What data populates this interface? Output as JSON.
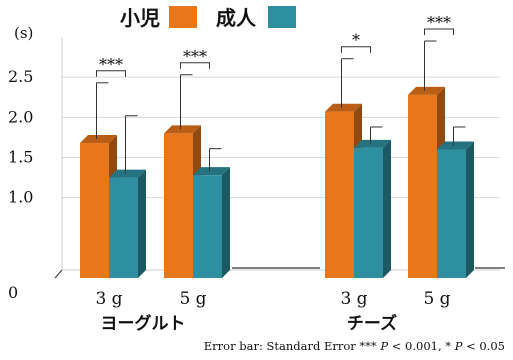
{
  "chart_data": {
    "type": "bar",
    "unit_label": "(s)",
    "ylim": [
      0,
      3.0
    ],
    "yticks": [
      "0",
      "1.0",
      "1.5",
      "2.0",
      "2.5"
    ],
    "ytick_values": [
      0,
      1.0,
      1.5,
      2.0,
      2.5
    ],
    "grid": true,
    "legend_position": "top",
    "series": [
      {
        "name": "小児",
        "color": "#E8761B"
      },
      {
        "name": "成人",
        "color": "#2E8FA0"
      }
    ],
    "groups": [
      {
        "label": "ヨーグルト",
        "items": [
          {
            "sub": "3 g",
            "values": [
              1.68,
              1.25
            ],
            "err": [
              0.75,
              0.77
            ],
            "sig": "***"
          },
          {
            "sub": "5 g",
            "values": [
              1.8,
              1.28
            ],
            "err": [
              0.73,
              0.33
            ],
            "sig": "***"
          }
        ]
      },
      {
        "label": "チーズ",
        "items": [
          {
            "sub": "3 g",
            "values": [
              2.07,
              1.62
            ],
            "err": [
              0.66,
              0.26
            ],
            "sig": "*"
          },
          {
            "sub": "5 g",
            "values": [
              2.28,
              1.6
            ],
            "err": [
              0.67,
              0.28
            ],
            "sig": "***"
          }
        ]
      }
    ],
    "footnote_parts": [
      "Error bar: Standard Error *** ",
      "P",
      " < 0.001, * ",
      "P",
      " < 0.05"
    ]
  }
}
